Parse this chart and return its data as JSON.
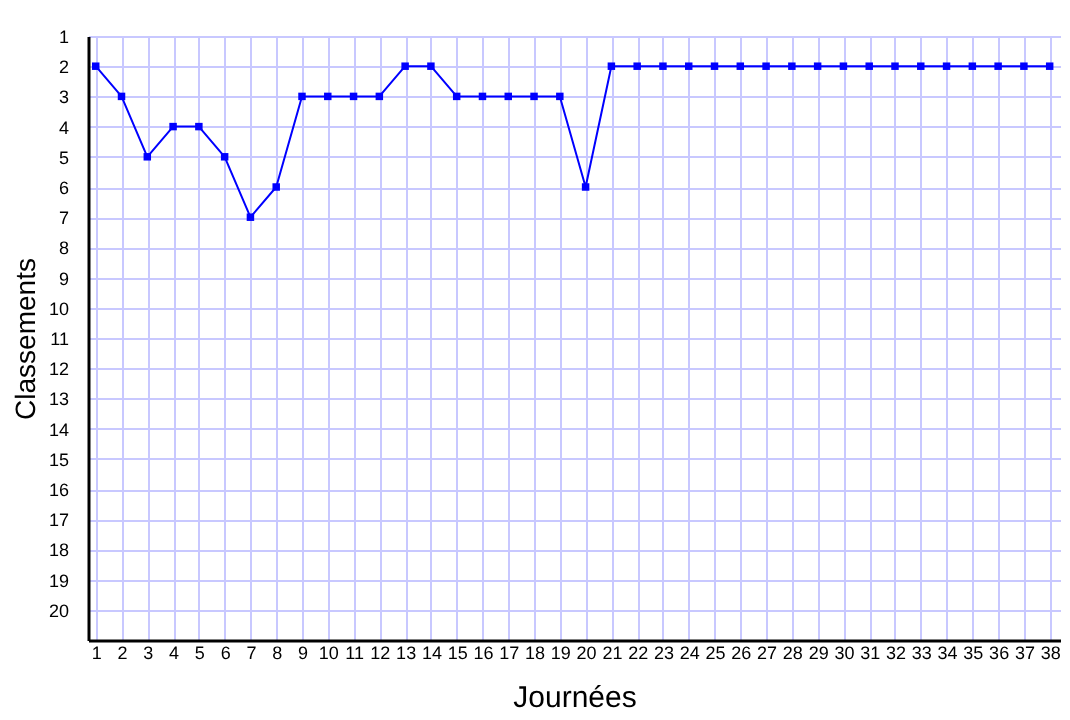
{
  "chart_data": {
    "type": "line",
    "xlabel": "Journées",
    "ylabel": "Classements",
    "x": [
      1,
      2,
      3,
      4,
      5,
      6,
      7,
      8,
      9,
      10,
      11,
      12,
      13,
      14,
      15,
      16,
      17,
      18,
      19,
      20,
      21,
      22,
      23,
      24,
      25,
      26,
      27,
      28,
      29,
      30,
      31,
      32,
      33,
      34,
      35,
      36,
      37,
      38
    ],
    "series": [
      {
        "color": "#0000ff",
        "values": [
          2,
          3,
          5,
          4,
          4,
          5,
          7,
          6,
          3,
          3,
          3,
          3,
          2,
          2,
          3,
          3,
          3,
          3,
          3,
          6,
          2,
          2,
          2,
          2,
          2,
          2,
          2,
          2,
          2,
          2,
          2,
          2,
          2,
          2,
          2,
          2,
          2,
          2
        ]
      }
    ],
    "xlim": [
      0.7,
      38.4
    ],
    "xticks": [
      1,
      2,
      3,
      4,
      5,
      6,
      7,
      8,
      9,
      10,
      11,
      12,
      13,
      14,
      15,
      16,
      17,
      18,
      19,
      20,
      21,
      22,
      23,
      24,
      25,
      26,
      27,
      28,
      29,
      30,
      31,
      32,
      33,
      34,
      35,
      36,
      37,
      38
    ],
    "ylim": [
      21,
      1
    ],
    "yticks": [
      1,
      2,
      3,
      4,
      5,
      6,
      7,
      8,
      9,
      10,
      11,
      12,
      13,
      14,
      15,
      16,
      17,
      18,
      19,
      20
    ],
    "grid": true,
    "marker": "square",
    "line_style": "solid"
  }
}
